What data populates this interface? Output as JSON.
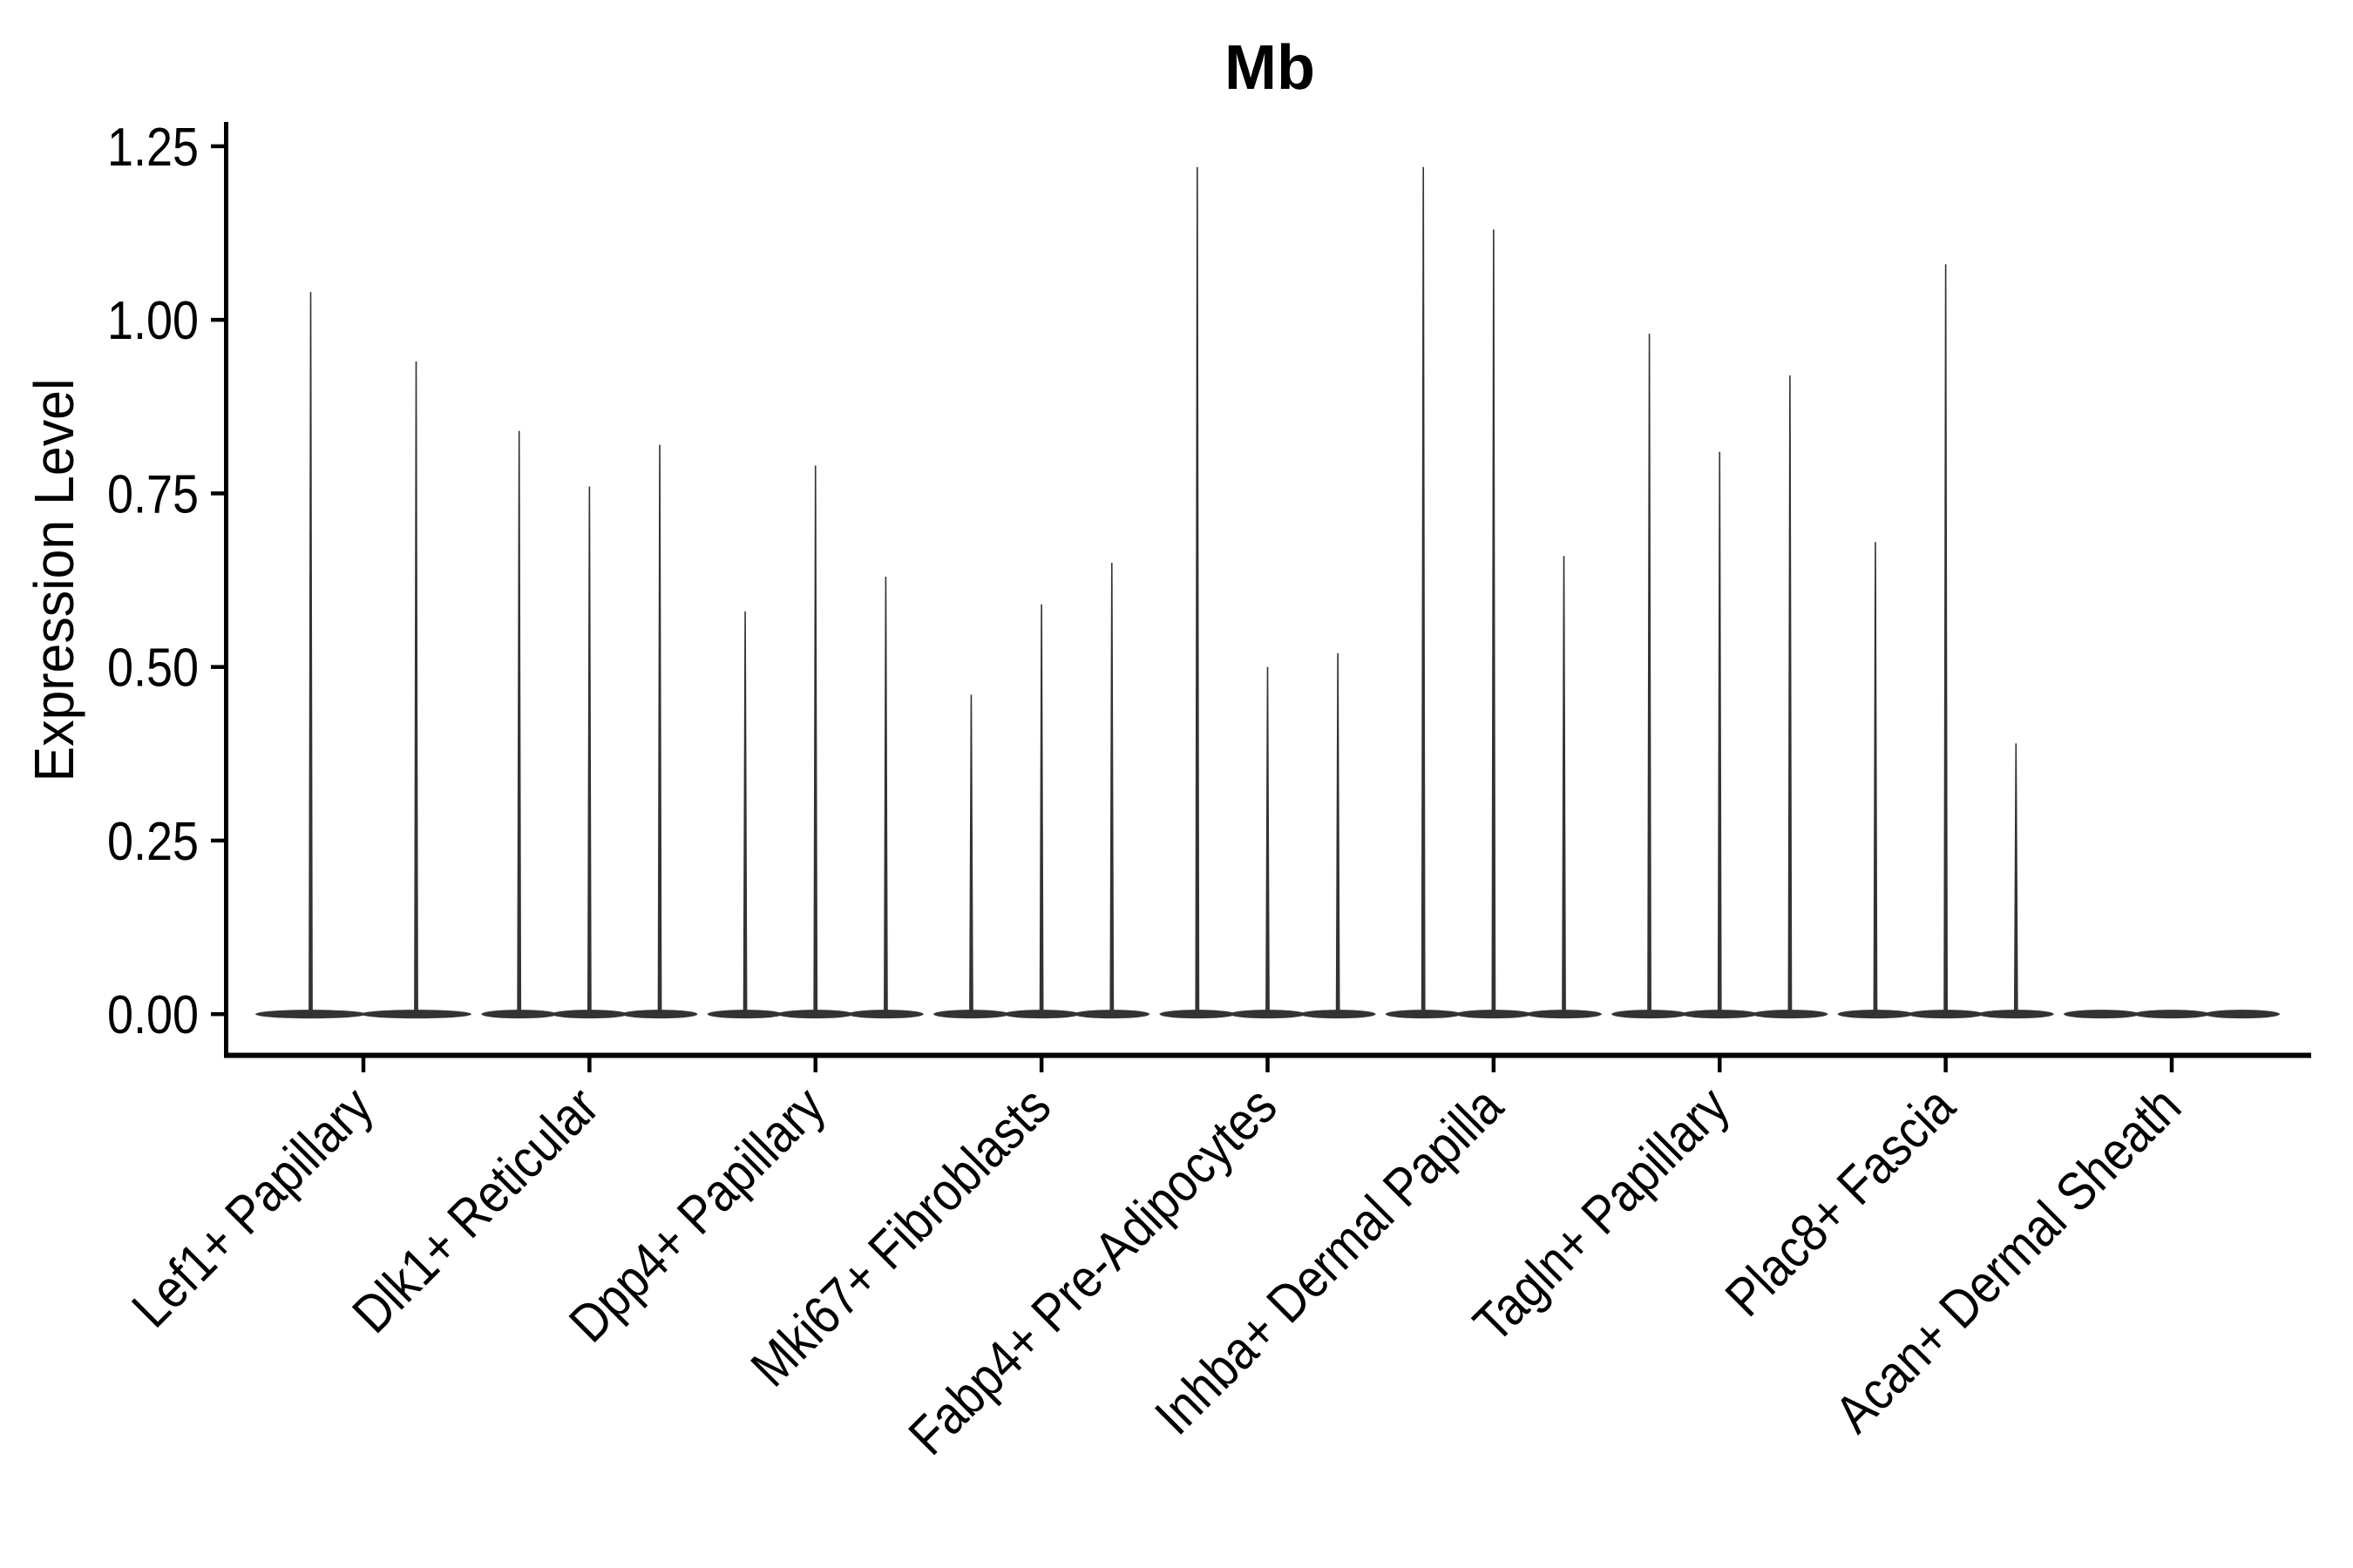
{
  "chart_data": {
    "type": "violin",
    "title": "Mb",
    "ylabel": "Expression Level",
    "xlabel": "",
    "ylim": [
      -0.06,
      1.285
    ],
    "yticks": [
      0,
      0.25,
      0.5,
      0.75,
      1.0,
      1.25
    ],
    "ytick_labels": [
      "0.00",
      "0.25",
      "0.50",
      "0.75",
      "1.00",
      "1.25"
    ],
    "grid": false,
    "legend_position": "none",
    "description": "Violin plot of Mb expression; each cluster shows 2-3 collapsed (spike-like) violins sitting on a flat band at 0, spike height = maximum expression value",
    "groups": [
      {
        "label": "Lef1+ Papillary",
        "values": [
          1.04,
          0.94
        ]
      },
      {
        "label": "Dlk1+ Reticular",
        "values": [
          0.84,
          0.76,
          0.82
        ]
      },
      {
        "label": "Dpp4+ Papillary",
        "values": [
          0.58,
          0.79,
          0.63
        ]
      },
      {
        "label": "Mki67+ Fibroblasts",
        "values": [
          0.46,
          0.59,
          0.65
        ]
      },
      {
        "label": "Fabp4+ Pre-Adipocytes",
        "values": [
          1.22,
          0.5,
          0.52
        ]
      },
      {
        "label": "Inhba+ Dermal Papilla",
        "values": [
          1.22,
          1.13,
          0.66
        ]
      },
      {
        "label": "Tagln+ Papillary",
        "values": [
          0.98,
          0.81,
          0.92
        ]
      },
      {
        "label": "Plac8+ Fascia",
        "values": [
          0.68,
          1.08,
          0.39
        ]
      },
      {
        "label": "Acan+ Dermal Sheath",
        "values": [
          0,
          0,
          0
        ]
      }
    ],
    "colors": {
      "violin": "#333333",
      "axis": "#000000",
      "text": "#000000",
      "background": "#ffffff"
    }
  }
}
